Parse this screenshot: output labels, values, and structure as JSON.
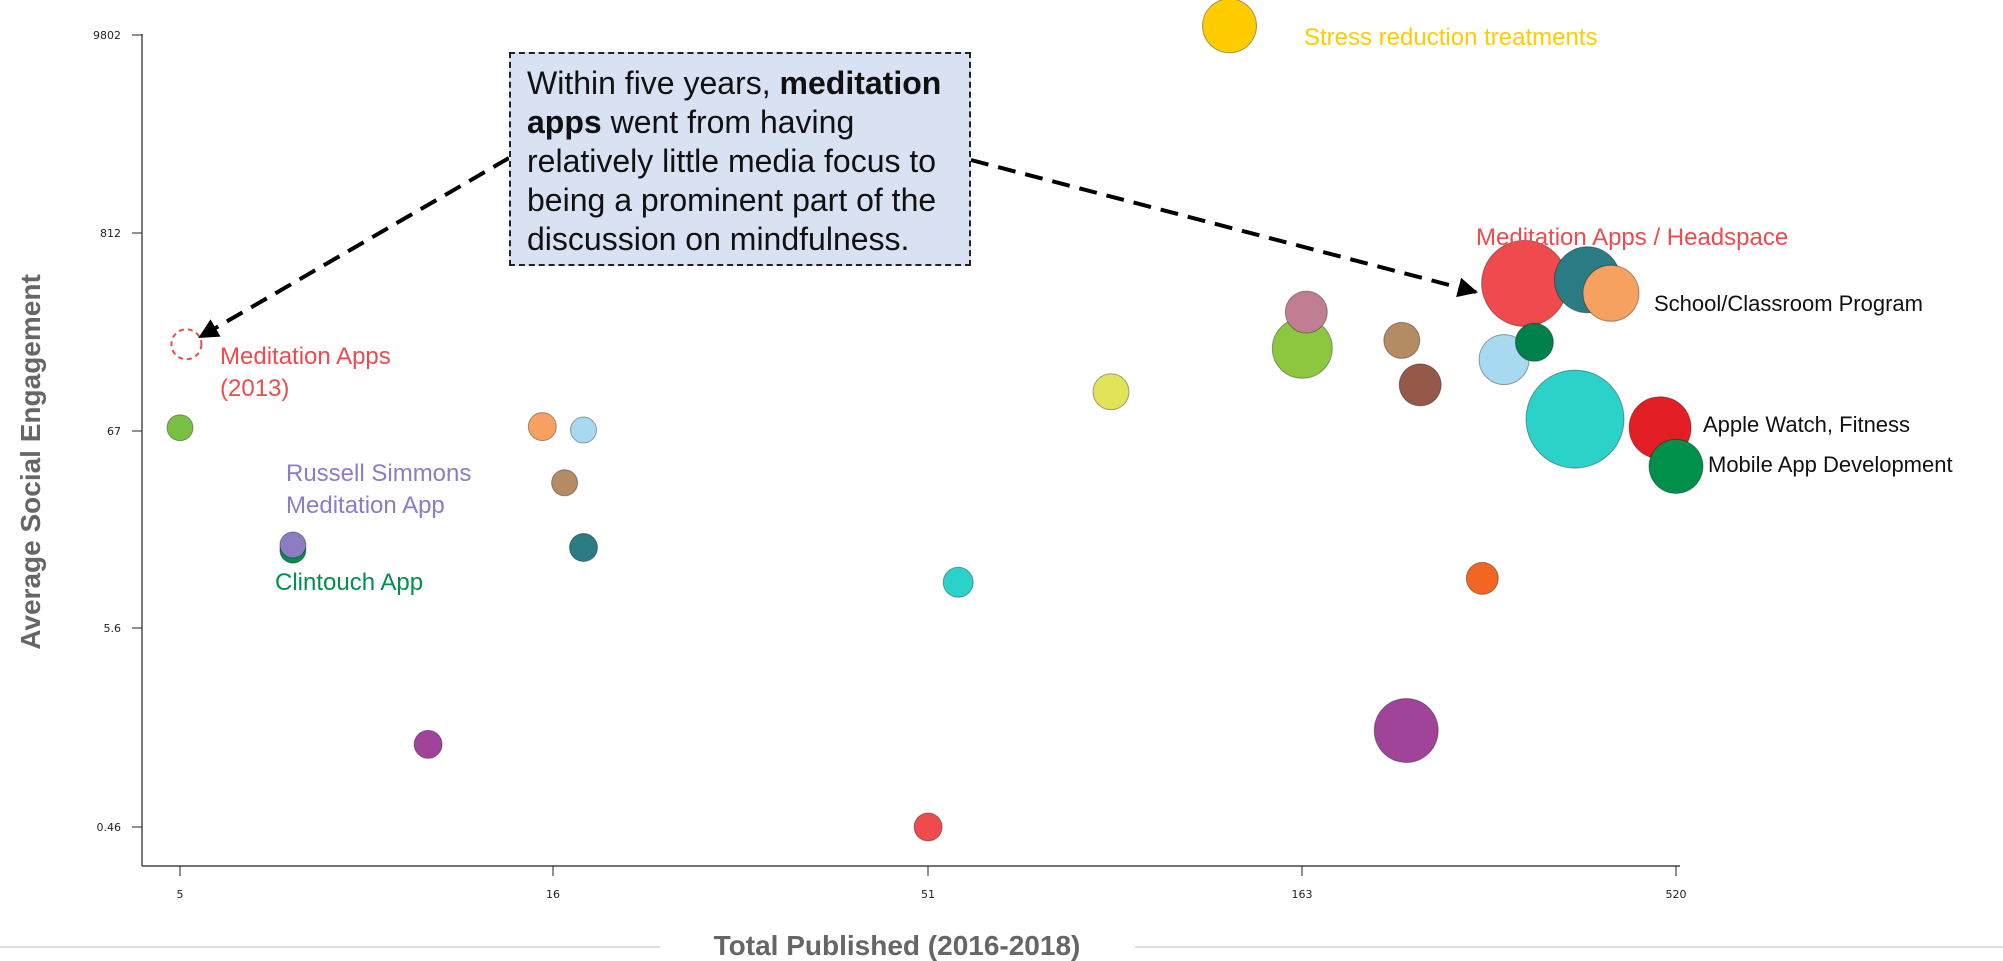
{
  "chart_data": {
    "type": "scatter",
    "title": "",
    "xlabel": "Total Published (2016-2018)",
    "ylabel": "Average Social Engagement",
    "x_scale": "log",
    "y_scale": "log",
    "xlim": [
      5,
      520
    ],
    "ylim": [
      0.46,
      9802
    ],
    "x_ticks": [
      "5",
      "16",
      "51",
      "163",
      "520"
    ],
    "y_ticks": [
      "0.46",
      "5.6",
      "67",
      "812",
      "9802"
    ],
    "points": [
      {
        "x": 5.0,
        "y": 70,
        "r": 13,
        "color": "#7ac143",
        "label": ""
      },
      {
        "x": 7.1,
        "y": 15,
        "r": 13,
        "color": "#00904a",
        "label": ""
      },
      {
        "x": 7.1,
        "y": 16,
        "r": 13,
        "color": "#8e7cc3",
        "label": ""
      },
      {
        "x": 10.8,
        "y": 1.3,
        "r": 14,
        "color": "#a0449a",
        "label": ""
      },
      {
        "x": 15.4,
        "y": 71,
        "r": 14,
        "color": "#f6a15f",
        "label": ""
      },
      {
        "x": 16.5,
        "y": 35,
        "r": 13,
        "color": "#b58b63",
        "label": ""
      },
      {
        "x": 17.5,
        "y": 15.5,
        "r": 14,
        "color": "#2b7b84",
        "label": ""
      },
      {
        "x": 17.5,
        "y": 68,
        "r": 13,
        "color": "#a7d9f1",
        "label": ""
      },
      {
        "x": 51,
        "y": 0.46,
        "r": 14,
        "color": "#ef4a4d",
        "label": ""
      },
      {
        "x": 56,
        "y": 10,
        "r": 15,
        "color": "#2ad2c9",
        "label": ""
      },
      {
        "x": 90,
        "y": 110,
        "r": 18,
        "color": "#e3e35a",
        "label": ""
      },
      {
        "x": 130,
        "y": 11000,
        "r": 27,
        "color": "#ffcc00",
        "label": "Stress reduction treatments"
      },
      {
        "x": 163,
        "y": 190,
        "r": 30,
        "color": "#8dc63f",
        "label": ""
      },
      {
        "x": 165,
        "y": 300,
        "r": 21,
        "color": "#c17d92",
        "label": ""
      },
      {
        "x": 225,
        "y": 1.55,
        "r": 32,
        "color": "#a0449a",
        "label": ""
      },
      {
        "x": 222,
        "y": 210,
        "r": 18,
        "color": "#b58b63",
        "label": ""
      },
      {
        "x": 235,
        "y": 120,
        "r": 21,
        "color": "#955949",
        "label": ""
      },
      {
        "x": 285,
        "y": 10.5,
        "r": 16,
        "color": "#f26522",
        "label": ""
      },
      {
        "x": 305,
        "y": 165,
        "r": 25,
        "color": "#a7d9f1",
        "label": ""
      },
      {
        "x": 325,
        "y": 430,
        "r": 43,
        "color": "#ef4a4d",
        "label": "Meditation Apps / Headspace"
      },
      {
        "x": 335,
        "y": 205,
        "r": 19,
        "color": "#00804a",
        "label": ""
      },
      {
        "x": 380,
        "y": 78,
        "r": 49,
        "color": "#2ad2c9",
        "label": ""
      },
      {
        "x": 395,
        "y": 450,
        "r": 33,
        "color": "#2b7b84",
        "label": ""
      },
      {
        "x": 425,
        "y": 380,
        "r": 28,
        "color": "#f6a15f",
        "label": "School/Classroom Program"
      },
      {
        "x": 495,
        "y": 70,
        "r": 31,
        "color": "#e31e24",
        "label": "Apple Watch, Fitness"
      },
      {
        "x": 520,
        "y": 43,
        "r": 27,
        "color": "#00904a",
        "label": "Mobile App Development"
      }
    ],
    "ghost_point": {
      "x": 5.1,
      "y": 200,
      "color": "#ef4a4d",
      "label_lines": [
        "Meditation Apps",
        "(2013)"
      ]
    },
    "annotations": [
      {
        "lines": [
          "Russell Simmons",
          "Meditation App"
        ],
        "color": "#8e7cc3"
      },
      {
        "lines": [
          "Clintouch App"
        ],
        "color": "#00904a"
      }
    ],
    "callout": {
      "line1_pre": "Within five years, ",
      "line1_bold": "meditation",
      "line2_bold": "apps",
      "line2_rest": " went from having",
      "line3": "relatively little media focus to",
      "line4": "being a prominent part of the",
      "line5": "discussion on mindfulness."
    },
    "grid": false,
    "legend": "none"
  }
}
